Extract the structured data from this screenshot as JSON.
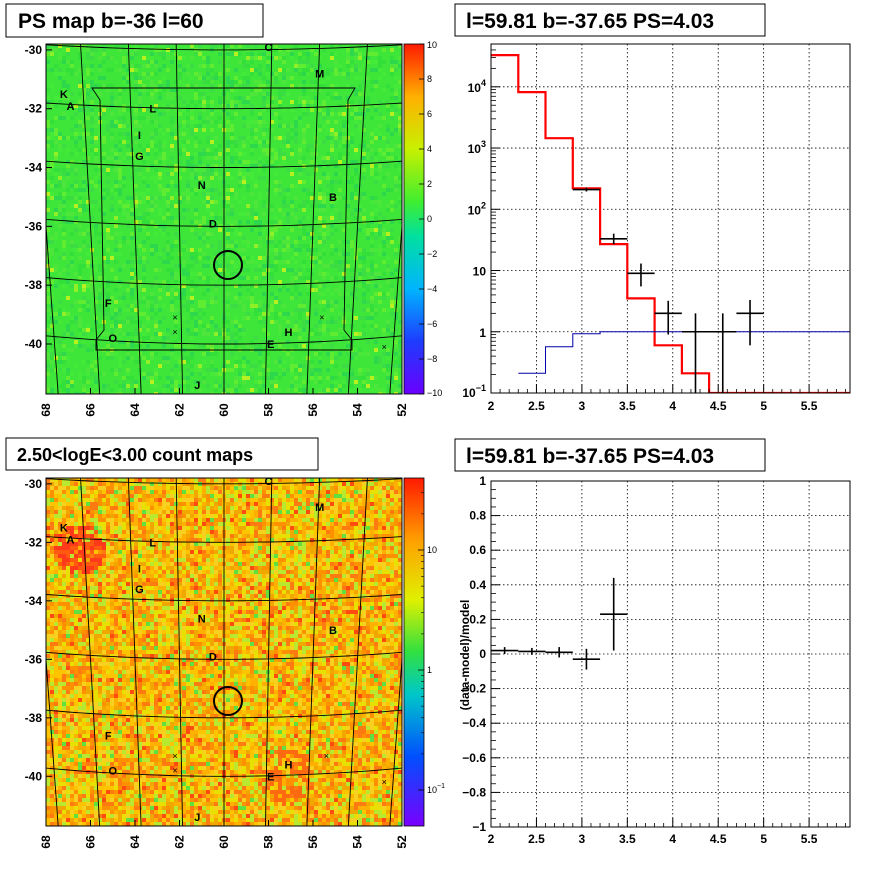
{
  "chart_data": [
    {
      "id": "ps_map",
      "type": "heatmap",
      "title": "PS map b=-36 l=60",
      "x_ticks": [
        "68",
        "66",
        "64",
        "62",
        "60",
        "58",
        "56",
        "54",
        "52"
      ],
      "y_ticks": [
        "-30",
        "-32",
        "-34",
        "-36",
        "-38",
        "-40"
      ],
      "xlim": [
        68,
        52
      ],
      "ylim": [
        -41.7,
        -29.8
      ],
      "colorbar_ticks": [
        "10",
        "8",
        "6",
        "4",
        "2",
        "0",
        "−2",
        "−4",
        "−6",
        "−8",
        "−10"
      ],
      "colorbar_range": [
        -10,
        10
      ],
      "sources": [
        {
          "label": "C",
          "l": 58.0,
          "b": -29.9
        },
        {
          "label": "M",
          "l": 55.7,
          "b": -30.8
        },
        {
          "label": "K",
          "l": 67.2,
          "b": -31.5
        },
        {
          "label": "A",
          "l": 66.9,
          "b": -31.9
        },
        {
          "label": "L",
          "l": 63.2,
          "b": -32.0
        },
        {
          "label": "I",
          "l": 63.8,
          "b": -32.9
        },
        {
          "label": "G",
          "l": 63.8,
          "b": -33.6
        },
        {
          "label": "N",
          "l": 61.0,
          "b": -34.6
        },
        {
          "label": "B",
          "l": 55.1,
          "b": -35.0
        },
        {
          "label": "D",
          "l": 60.5,
          "b": -35.9
        },
        {
          "label": "F",
          "l": 65.2,
          "b": -38.6
        },
        {
          "label": "O",
          "l": 65.0,
          "b": -39.8
        },
        {
          "label": "H",
          "l": 57.1,
          "b": -39.6
        },
        {
          "label": "E",
          "l": 57.9,
          "b": -40.0
        },
        {
          "label": "J",
          "l": 61.2,
          "b": -41.4
        }
      ]
    },
    {
      "id": "spectrum",
      "type": "line",
      "title": "l=59.81 b=-37.65 PS=4.03",
      "x_ticks": [
        "2",
        "2.5",
        "3",
        "3.5",
        "4",
        "4.5",
        "5",
        "5.5"
      ],
      "xlim": [
        2,
        5.95
      ],
      "ylim": [
        0.1,
        50000
      ],
      "log_y": true,
      "y_ticks": [
        {
          "base": "10",
          "exp": "4",
          "v": 10000
        },
        {
          "base": "10",
          "exp": "3",
          "v": 1000
        },
        {
          "base": "10",
          "exp": "2",
          "v": 100
        },
        {
          "base": "10",
          "exp": "",
          "v": 10
        },
        {
          "base": "1",
          "exp": "",
          "v": 1
        },
        {
          "base": "10",
          "exp": "−1",
          "v": 0.1
        }
      ],
      "grid": true,
      "series": [
        {
          "color": "#ff0000",
          "bins": [
            [
              2.0,
              2.3,
              33000
            ],
            [
              2.3,
              2.6,
              8200
            ],
            [
              2.6,
              2.9,
              1450
            ],
            [
              2.9,
              3.2,
              220
            ],
            [
              3.2,
              3.5,
              27
            ],
            [
              3.5,
              3.8,
              3.5
            ],
            [
              3.8,
              4.1,
              0.6
            ],
            [
              4.1,
              4.4,
              0.21
            ],
            [
              4.4,
              5.95,
              0.1
            ]
          ]
        },
        {
          "color": "#0000aa",
          "bins": [
            [
              2.3,
              2.6,
              0.21
            ],
            [
              2.6,
              2.9,
              0.57
            ],
            [
              2.9,
              3.2,
              0.93
            ],
            [
              3.2,
              3.5,
              1.0
            ],
            [
              3.5,
              5.95,
              1.0
            ]
          ]
        }
      ],
      "points": [
        {
          "x": 3.05,
          "y": 210,
          "xerr": 0.15,
          "ylo": 195,
          "yhi": 225
        },
        {
          "x": 3.35,
          "y": 33,
          "xerr": 0.15,
          "ylo": 27,
          "yhi": 40
        },
        {
          "x": 3.65,
          "y": 9,
          "xerr": 0.15,
          "ylo": 5.5,
          "yhi": 13
        },
        {
          "x": 3.95,
          "y": 2,
          "xerr": 0.15,
          "ylo": 0.9,
          "yhi": 3.2
        },
        {
          "x": 4.25,
          "y": 1,
          "xerr": 0.15,
          "ylo": 0.1,
          "yhi": 2
        },
        {
          "x": 4.55,
          "y": 1,
          "xerr": 0.15,
          "ylo": 0.1,
          "yhi": 2
        },
        {
          "x": 4.85,
          "y": 2,
          "xerr": 0.15,
          "ylo": 0.6,
          "yhi": 3.3
        }
      ]
    },
    {
      "id": "count_map",
      "type": "heatmap",
      "title": "2.50<logE<3.00 count maps",
      "x_ticks": [
        "68",
        "66",
        "64",
        "62",
        "60",
        "58",
        "56",
        "54",
        "52"
      ],
      "y_ticks": [
        "-30",
        "-32",
        "-34",
        "-36",
        "-38",
        "-40"
      ],
      "colorbar_ticks": [
        {
          "base": "10",
          "exp": "",
          "v": 10
        },
        {
          "base": "1",
          "exp": "",
          "v": 1
        },
        {
          "base": "10",
          "exp": "−1",
          "v": 0.1
        }
      ],
      "log_z": true
    },
    {
      "id": "residual",
      "type": "scatter",
      "title": "l=59.81 b=-37.65 PS=4.03",
      "ylabel": "(data-model)/model",
      "x_ticks": [
        "2",
        "2.5",
        "3",
        "3.5",
        "4",
        "4.5",
        "5",
        "5.5"
      ],
      "y_ticks": [
        "1",
        "0.8",
        "0.6",
        "0.4",
        "0.2",
        "0",
        "−0.2",
        "−0.4",
        "−0.6",
        "−0.8",
        "−1"
      ],
      "xlim": [
        2,
        5.95
      ],
      "ylim": [
        -1,
        1
      ],
      "grid": true,
      "points": [
        {
          "x": 2.15,
          "y": 0.02,
          "xerr": 0.15,
          "yerr": 0.02
        },
        {
          "x": 2.45,
          "y": 0.015,
          "xerr": 0.15,
          "yerr": 0.02
        },
        {
          "x": 2.75,
          "y": 0.01,
          "xerr": 0.15,
          "yerr": 0.03
        },
        {
          "x": 3.05,
          "y": -0.03,
          "xerr": 0.15,
          "yerr": 0.06
        },
        {
          "x": 3.35,
          "y": 0.23,
          "xerr": 0.15,
          "yerr": 0.21
        }
      ]
    }
  ]
}
